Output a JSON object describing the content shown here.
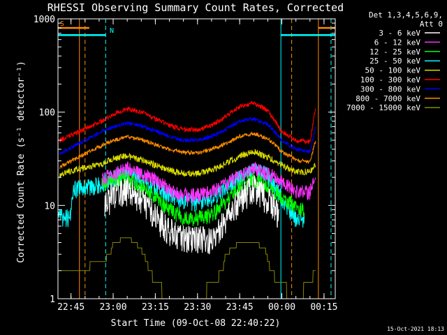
{
  "chart_data": {
    "type": "line",
    "title": "RHESSI Observing Summary Count Rates, Corrected",
    "xlabel": "Start Time (09-Oct-08 22:40:22)",
    "ylabel": "Corrected Count Rate (s⁻¹ detector⁻¹)",
    "y_scale": "log",
    "ylim": [
      1,
      1000
    ],
    "xlim": [
      "22:40:22",
      "00:19:00"
    ],
    "x_ticks": [
      "22:45",
      "23:00",
      "23:15",
      "23:30",
      "23:45",
      "00:00",
      "00:15"
    ],
    "y_ticks": [
      "1",
      "10",
      "100",
      "1000"
    ],
    "grid": false,
    "legend_position": "top-right",
    "detector_note": [
      "Det 1,3,4,5,6,9,",
      "Att 0"
    ],
    "footer_date": "15-Oct-2021 18:13",
    "flags": [
      {
        "label": "S",
        "color": "#ff8c00",
        "level": 800,
        "segments": [
          [
            "22:40:22",
            "22:51:30"
          ],
          [
            "00:13:00",
            "00:19:00"
          ]
        ]
      },
      {
        "label": "N",
        "color": "#00ffff",
        "level": 670,
        "segments": [
          [
            "22:40:22",
            "22:57:20"
          ],
          [
            "23:59:40",
            "00:19:00"
          ]
        ]
      }
    ],
    "vlines": [
      {
        "color": "#ff8c00",
        "style": "dashed",
        "x": "22:50:00"
      },
      {
        "color": "#00ffff",
        "style": "dashed",
        "x": "22:57:20"
      },
      {
        "color": "#ff8c00",
        "style": "dashed",
        "x": "00:03:30"
      },
      {
        "color": "#00ffff",
        "style": "dashed",
        "x": "00:17:30"
      },
      {
        "color": "#ff8c00",
        "style": "solid",
        "x": "22:48:00"
      },
      {
        "color": "#00ffff",
        "style": "solid",
        "x": "23:59:40"
      },
      {
        "color": "#ff8c00",
        "style": "solid",
        "x": "00:13:00"
      }
    ],
    "series": [
      {
        "name": "3 - 6 keV",
        "color": "#ffffff",
        "noise": 0.35,
        "x": [
          "22:57:00",
          "23:00:00",
          "23:05:00",
          "23:10:00",
          "23:15:00",
          "23:20:00",
          "23:25:00",
          "23:30:00",
          "23:35:00",
          "23:40:00",
          "23:45:00",
          "23:50:00",
          "23:55:00",
          "23:59:00"
        ],
        "y": [
          10,
          14,
          15,
          12,
          8,
          5.5,
          4.5,
          4.5,
          4.5,
          7,
          12,
          16,
          12,
          8
        ]
      },
      {
        "name": "6 - 12 keV",
        "color": "#ff33ff",
        "noise": 0.18,
        "x": [
          "22:41:00",
          "22:46:00",
          "22:56:00",
          "23:00:00",
          "23:05:00",
          "23:10:00",
          "23:15:00",
          "23:20:00",
          "23:25:00",
          "23:30:00",
          "23:35:00",
          "23:40:00",
          "23:45:00",
          "23:50:00",
          "23:55:00",
          "00:00:00",
          "00:05:00",
          "00:10:00",
          "00:12:00"
        ],
        "y": [
          null,
          null,
          19,
          22,
          25,
          22,
          19,
          15,
          13,
          13,
          14,
          17,
          21,
          25,
          22,
          18,
          14,
          14,
          20
        ]
      },
      {
        "name": "12 - 25 keV",
        "color": "#00ff00",
        "noise": 0.2,
        "x": [
          "22:56:00",
          "23:00:00",
          "23:05:00",
          "23:10:00",
          "23:15:00",
          "23:20:00",
          "23:25:00",
          "23:30:00",
          "23:35:00",
          "23:40:00",
          "23:45:00",
          "23:50:00",
          "23:55:00",
          "00:00:00",
          "00:05:00",
          "00:08:00"
        ],
        "y": [
          17,
          19,
          20,
          16,
          12,
          9,
          7.5,
          7.5,
          8,
          11,
          16,
          19,
          16,
          12,
          10,
          9
        ]
      },
      {
        "name": "25 - 50 keV",
        "color": "#00ffff",
        "noise": 0.22,
        "x": [
          "22:40:30",
          "22:43:00",
          "22:44:30",
          "22:46:00",
          "22:56:00",
          "23:00:00",
          "23:05:00",
          "23:10:00",
          "23:15:00",
          "23:20:00",
          "23:25:00",
          "23:30:00",
          "23:35:00",
          "23:40:00",
          "23:45:00",
          "23:50:00",
          "23:55:00",
          "00:00:00",
          "00:05:00",
          "00:08:00"
        ],
        "y": [
          7.5,
          7.5,
          7.5,
          15,
          17,
          20,
          22,
          19,
          16,
          13,
          11,
          11,
          12,
          15,
          20,
          24,
          21,
          12,
          7,
          7
        ]
      },
      {
        "name": "50 - 100 keV",
        "color": "#dddd00",
        "noise": 0.08,
        "x": [
          "22:41:00",
          "22:46:00",
          "22:56:00",
          "23:00:00",
          "23:05:00",
          "23:10:00",
          "23:15:00",
          "23:20:00",
          "23:25:00",
          "23:30:00",
          "23:35:00",
          "23:40:00",
          "23:45:00",
          "23:50:00",
          "23:55:00",
          "00:00:00",
          "00:05:00",
          "00:10:00",
          "00:12:00"
        ],
        "y": [
          21,
          24,
          28,
          32,
          34,
          31,
          27,
          24,
          22,
          22,
          24,
          28,
          34,
          38,
          33,
          27,
          23,
          23,
          28
        ]
      },
      {
        "name": "100 - 300 keV",
        "color": "#ff0000",
        "noise": 0.06,
        "x": [
          "22:41:00",
          "22:46:00",
          "22:56:00",
          "23:00:00",
          "23:05:00",
          "23:10:00",
          "23:15:00",
          "23:20:00",
          "23:25:00",
          "23:30:00",
          "23:35:00",
          "23:40:00",
          "23:45:00",
          "23:50:00",
          "23:55:00",
          "00:00:00",
          "00:05:00",
          "00:10:00",
          "00:12:00"
        ],
        "y": [
          50,
          58,
          80,
          95,
          108,
          100,
          85,
          72,
          65,
          65,
          72,
          90,
          115,
          125,
          105,
          62,
          50,
          48,
          110
        ]
      },
      {
        "name": "300 - 800 keV",
        "color": "#0000ff",
        "noise": 0.05,
        "x": [
          "22:41:00",
          "22:46:00",
          "22:56:00",
          "23:00:00",
          "23:05:00",
          "23:10:00",
          "23:15:00",
          "23:20:00",
          "23:25:00",
          "23:30:00",
          "23:35:00",
          "23:40:00",
          "23:45:00",
          "23:50:00",
          "23:55:00",
          "00:00:00",
          "00:05:00",
          "00:10:00",
          "00:12:00"
        ],
        "y": [
          36,
          43,
          62,
          70,
          76,
          71,
          63,
          55,
          50,
          50,
          55,
          65,
          80,
          85,
          74,
          50,
          40,
          38,
          70
        ]
      },
      {
        "name": "800 - 7000 keV",
        "color": "#ff8c00",
        "noise": 0.05,
        "x": [
          "22:41:00",
          "22:46:00",
          "22:56:00",
          "23:00:00",
          "23:05:00",
          "23:10:00",
          "23:15:00",
          "23:20:00",
          "23:25:00",
          "23:30:00",
          "23:35:00",
          "23:40:00",
          "23:45:00",
          "23:50:00",
          "23:55:00",
          "00:00:00",
          "00:05:00",
          "00:10:00",
          "00:12:00"
        ],
        "y": [
          26,
          31,
          44,
          50,
          54,
          51,
          45,
          40,
          37,
          37,
          40,
          46,
          55,
          59,
          52,
          38,
          31,
          29,
          50
        ]
      },
      {
        "name": "7000 - 15000 keV",
        "color": "#888800",
        "noise": 0,
        "x": [
          "22:41:00",
          "22:47:00",
          "22:56:00",
          "22:59:00",
          "23:00:00",
          "23:05:00",
          "23:08:00",
          "23:11:00",
          "23:13:00",
          "23:15:00",
          "23:20:00",
          "23:25:00",
          "23:30:00",
          "23:36:00",
          "23:39:00",
          "23:40:00",
          "23:45:00",
          "23:50:00",
          "23:54:00",
          "23:56:00",
          "23:59:00",
          "00:05:00",
          "00:10:00",
          "00:12:00"
        ],
        "y": [
          2,
          2,
          2.5,
          3,
          4,
          4.5,
          4,
          3,
          2,
          1.5,
          1,
          1,
          1,
          1.5,
          2,
          3,
          4,
          4,
          3.5,
          2,
          1.5,
          1,
          1.5,
          2
        ]
      }
    ]
  }
}
